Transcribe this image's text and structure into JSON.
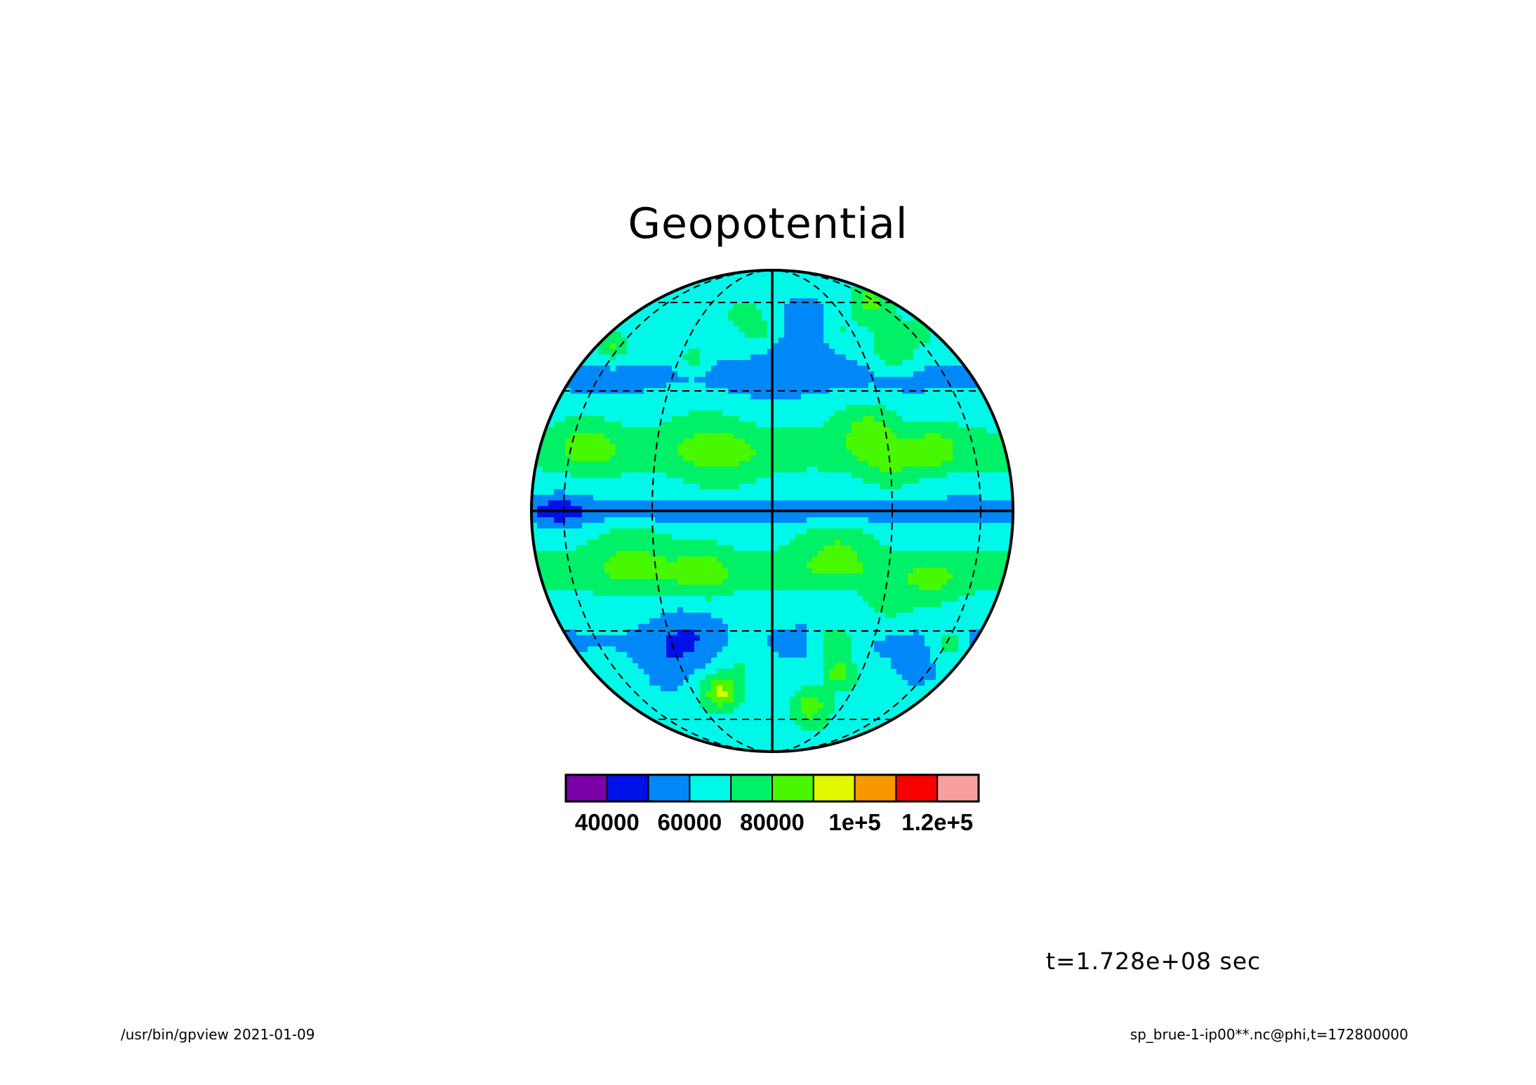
{
  "chart_data": {
    "type": "heatmap",
    "title": "Geopotential",
    "projection": "orthographic",
    "grid": true,
    "color_levels": [
      {
        "upper": 40000,
        "color": "#7b00a8"
      },
      {
        "upper": 50000,
        "color": "#0010e8"
      },
      {
        "upper": 60000,
        "color": "#0088f8"
      },
      {
        "upper": 70000,
        "color": "#00f8e8"
      },
      {
        "upper": 80000,
        "color": "#00f068"
      },
      {
        "upper": 90000,
        "color": "#48f800"
      },
      {
        "upper": 100000,
        "color": "#e0f800"
      },
      {
        "upper": 110000,
        "color": "#f89800"
      },
      {
        "upper": 120000,
        "color": "#f80000"
      },
      {
        "upper": 130000,
        "color": "#f8a0a0"
      }
    ],
    "colorbar_tick_labels": [
      "40000",
      "60000",
      "80000",
      "1e+5",
      "1.2e+5"
    ],
    "annotations": {
      "time": "t=1.728e+08 sec"
    }
  },
  "footer": {
    "left": "/usr/bin/gpview   2021-01-09",
    "right": "sp_brue-1-ip00**.nc@phi,t=172800000"
  }
}
